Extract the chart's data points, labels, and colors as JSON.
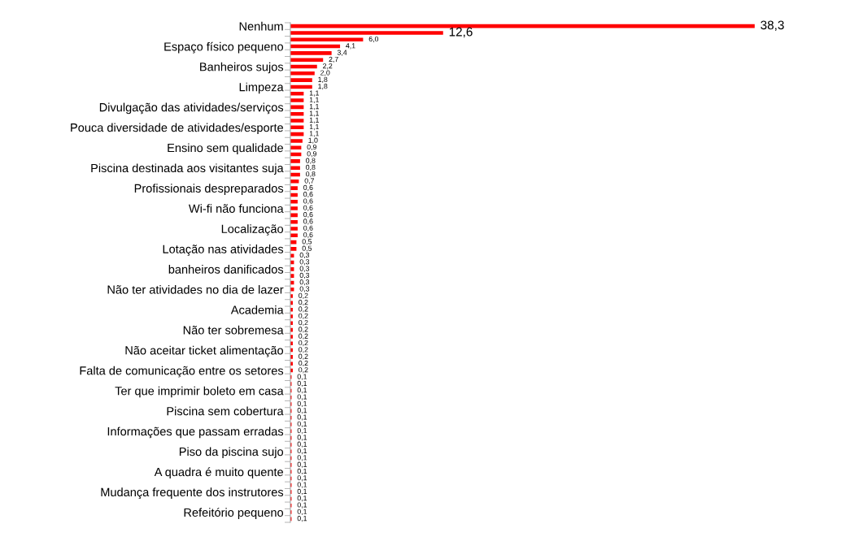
{
  "chart_data": {
    "type": "bar",
    "orientation": "horizontal",
    "value_labels": [
      "38,3",
      "12,6",
      "6,0",
      "4,1",
      "3,4",
      "2,7",
      "2,2",
      "2,0",
      "1,8",
      "1,8",
      "1,1",
      "1,1",
      "1,1",
      "1,1",
      "1,1",
      "1,1",
      "1,1",
      "1,0",
      "0,9",
      "0,9",
      "0,8",
      "0,8",
      "0,8",
      "0,7",
      "0,6",
      "0,6",
      "0,6",
      "0,6",
      "0,6",
      "0,6",
      "0,6",
      "0,6",
      "0,5",
      "0,5",
      "0,3",
      "0,3",
      "0,3",
      "0,3",
      "0,3",
      "0,3",
      "0,2",
      "0,2",
      "0,2",
      "0,2",
      "0,2",
      "0,2",
      "0,2",
      "0,2",
      "0,2",
      "0,2",
      "0,2",
      "0,2",
      "0,1",
      "0,1",
      "0,1",
      "0,1",
      "0,1",
      "0,1",
      "0,1",
      "0,1",
      "0,1",
      "0,1",
      "0,1",
      "0,1",
      "0,1",
      "0,1",
      "0,1",
      "0,1",
      "0,1",
      "0,1",
      "0,1",
      "0,1",
      "0,1",
      "0,1"
    ],
    "grid": false,
    "legend": false,
    "color": "#ff0000",
    "categories": [
      "Nenhum",
      null,
      null,
      "Espaço físico pequeno",
      null,
      null,
      "Banheiros sujos",
      null,
      null,
      "Limpeza",
      null,
      null,
      "Divulgação das atividades/serviços",
      null,
      null,
      "Pouca diversidade de atividades/esporte",
      null,
      null,
      "Ensino sem qualidade",
      null,
      null,
      "Piscina destinada aos visitantes suja",
      null,
      null,
      "Profissionais despreparados",
      null,
      null,
      "Wi-fi não funciona",
      null,
      null,
      "Localização",
      null,
      null,
      "Lotação nas atividades",
      null,
      null,
      "banheiros danificados",
      null,
      null,
      "Não ter atividades no dia de lazer",
      null,
      null,
      "Academia",
      null,
      null,
      "Não ter sobremesa",
      null,
      null,
      "Não aceitar ticket alimentação",
      null,
      null,
      "Falta de comunicação entre os setores",
      null,
      null,
      "Ter que imprimir boleto em casa",
      null,
      null,
      "Piscina sem cobertura",
      null,
      null,
      "Informações que passam erradas",
      null,
      null,
      "Piso da piscina sujo",
      null,
      null,
      "A quadra é muito quente",
      null,
      null,
      "Mudança frequente dos instrutores",
      null,
      null,
      "Refeitório pequeno",
      null
    ],
    "values": [
      38.3,
      12.6,
      6.0,
      4.1,
      3.4,
      2.7,
      2.2,
      2.0,
      1.8,
      1.8,
      1.1,
      1.1,
      1.1,
      1.1,
      1.1,
      1.1,
      1.1,
      1.0,
      0.9,
      0.9,
      0.8,
      0.8,
      0.8,
      0.7,
      0.6,
      0.6,
      0.6,
      0.6,
      0.6,
      0.6,
      0.6,
      0.6,
      0.5,
      0.5,
      0.3,
      0.3,
      0.3,
      0.3,
      0.3,
      0.3,
      0.2,
      0.2,
      0.2,
      0.2,
      0.2,
      0.2,
      0.2,
      0.2,
      0.2,
      0.2,
      0.2,
      0.2,
      0.1,
      0.1,
      0.1,
      0.1,
      0.1,
      0.1,
      0.1,
      0.1,
      0.1,
      0.1,
      0.1,
      0.1,
      0.1,
      0.1,
      0.1,
      0.1,
      0.1,
      0.1,
      0.1,
      0.1,
      0.1,
      0.1
    ]
  }
}
